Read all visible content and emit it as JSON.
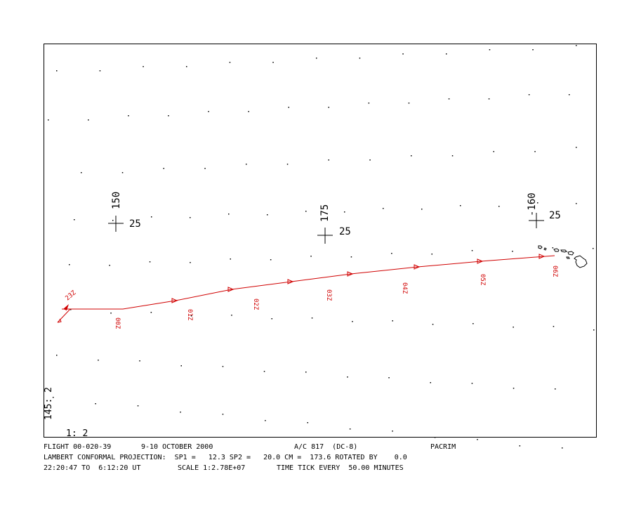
{
  "map": {
    "grid_labels": [
      {
        "lon": "150",
        "lat": "25"
      },
      {
        "lon": "175",
        "lat": "25"
      },
      {
        "lon": "-160",
        "lat": "25"
      }
    ],
    "time_ticks": [
      "23Z",
      "00Z",
      "01Z",
      "02Z",
      "03Z",
      "04Z",
      "05Z",
      "06Z"
    ],
    "corner_vertical": "145: 2",
    "corner_bottom": "1: 2",
    "track_color": "#d00000"
  },
  "footer": {
    "line1": {
      "flight": "FLIGHT 00-020-39",
      "dates": "9-10 OCTOBER 2000",
      "aircraft": "A/C 817  (DC-8)",
      "campaign": "PACRIM"
    },
    "line2": {
      "projection": "LAMBERT CONFORMAL PROJECTION:  SP1 =   12.3 SP2 =   20.0 CM =  173.6 ROTATED BY    0.0"
    },
    "line3": {
      "time_range": "22:20:47 TO  6:12:20 UT",
      "scale": "SCALE 1:2.78E+07",
      "time_tick": "TIME TICK EVERY  50.00 MINUTES"
    }
  }
}
